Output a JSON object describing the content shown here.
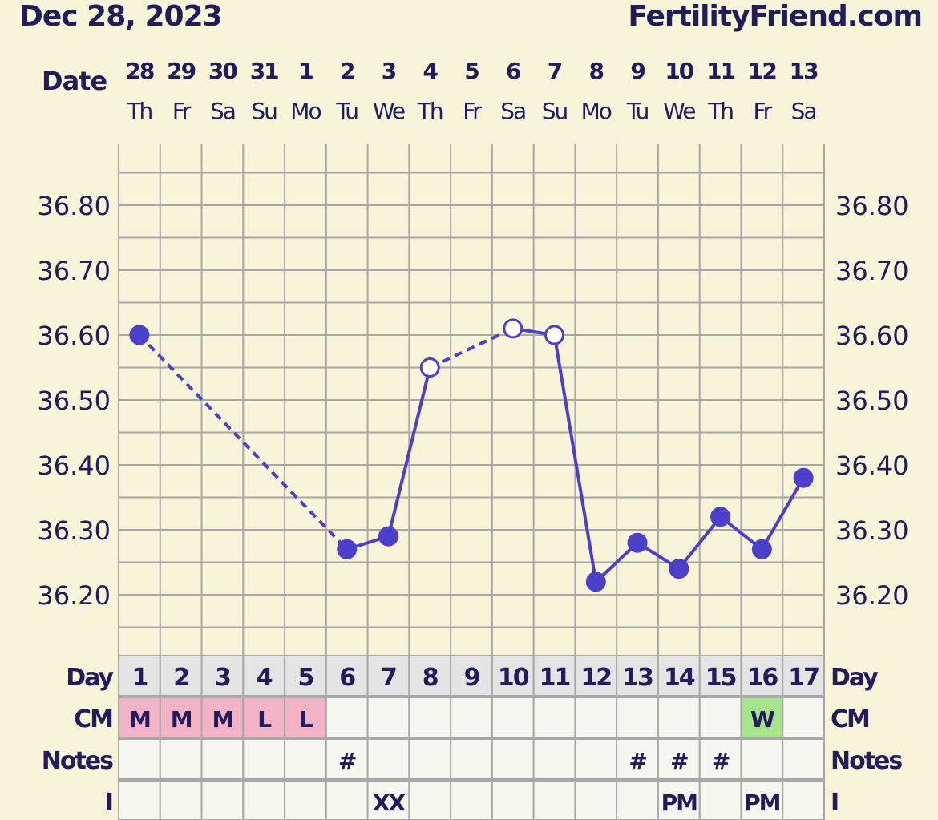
{
  "header": {
    "date": "Dec 28, 2023",
    "site": "FertilityFriend.com"
  },
  "labels": {
    "date": "Date",
    "day": "Day",
    "cm": "CM",
    "notes": "Notes",
    "i": "I"
  },
  "colors": {
    "background": "#f8f4d9",
    "text": "#231c5c",
    "line": "#4b3fcc",
    "grid": "#a8a8a8",
    "cm_menstrual": "#f3b3c6",
    "cm_watery": "#a4e48a",
    "day_row": "#e4e4e4",
    "cell": "#f6f6f0"
  },
  "chart_data": {
    "type": "line",
    "title": "",
    "ylim": [
      36.1,
      36.9
    ],
    "yticks": [
      "36.20",
      "36.30",
      "36.40",
      "36.50",
      "36.60",
      "36.70",
      "36.80"
    ],
    "grid": true,
    "dates": [
      "28",
      "29",
      "30",
      "31",
      "1",
      "2",
      "3",
      "4",
      "5",
      "6",
      "7",
      "8",
      "9",
      "10",
      "11",
      "12",
      "13"
    ],
    "weekdays": [
      "Th",
      "Fr",
      "Sa",
      "Su",
      "Mo",
      "Tu",
      "We",
      "Th",
      "Fr",
      "Sa",
      "Su",
      "Mo",
      "Tu",
      "We",
      "Th",
      "Fr",
      "Sa"
    ],
    "cycle_days": [
      "1",
      "2",
      "3",
      "4",
      "5",
      "6",
      "7",
      "8",
      "9",
      "10",
      "11",
      "12",
      "13",
      "14",
      "15",
      "16",
      "17"
    ],
    "temperatures": [
      36.6,
      null,
      null,
      null,
      null,
      36.27,
      36.29,
      36.55,
      null,
      36.61,
      36.6,
      36.22,
      36.28,
      36.24,
      36.32,
      36.27,
      36.38
    ],
    "open_markers": [
      8,
      10,
      11
    ],
    "dashed_segments": [
      [
        1,
        6
      ],
      [
        8,
        10
      ]
    ],
    "cm": [
      "M",
      "M",
      "M",
      "L",
      "L",
      "",
      "",
      "",
      "",
      "",
      "",
      "",
      "",
      "",
      "",
      "W",
      ""
    ],
    "notes": [
      "",
      "",
      "",
      "",
      "",
      "#",
      "",
      "",
      "",
      "",
      "",
      "",
      "#",
      "#",
      "#",
      "",
      ""
    ],
    "i": [
      "",
      "",
      "",
      "",
      "",
      "",
      "XX",
      "",
      "",
      "",
      "",
      "",
      "",
      "PM",
      "",
      "PM",
      ""
    ]
  }
}
